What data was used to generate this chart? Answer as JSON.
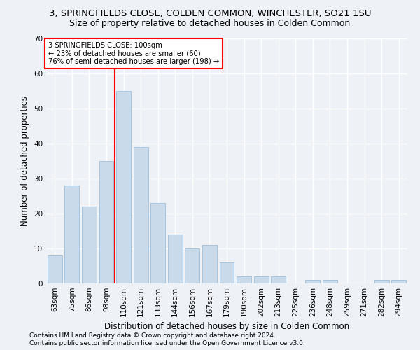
{
  "title": "3, SPRINGFIELDS CLOSE, COLDEN COMMON, WINCHESTER, SO21 1SU",
  "subtitle": "Size of property relative to detached houses in Colden Common",
  "xlabel": "Distribution of detached houses by size in Colden Common",
  "ylabel": "Number of detached properties",
  "categories": [
    "63sqm",
    "75sqm",
    "86sqm",
    "98sqm",
    "110sqm",
    "121sqm",
    "133sqm",
    "144sqm",
    "156sqm",
    "167sqm",
    "179sqm",
    "190sqm",
    "202sqm",
    "213sqm",
    "225sqm",
    "236sqm",
    "248sqm",
    "259sqm",
    "271sqm",
    "282sqm",
    "294sqm"
  ],
  "values": [
    8,
    28,
    22,
    35,
    55,
    39,
    23,
    14,
    10,
    11,
    6,
    2,
    2,
    2,
    0,
    1,
    1,
    0,
    0,
    1,
    1
  ],
  "bar_color": "#c9daea",
  "bar_edgecolor": "#a8c4de",
  "redline_index": 3.5,
  "annotation_lines": [
    "3 SPRINGFIELDS CLOSE: 100sqm",
    "← 23% of detached houses are smaller (60)",
    "76% of semi-detached houses are larger (198) →"
  ],
  "ylim": [
    0,
    70
  ],
  "yticks": [
    0,
    10,
    20,
    30,
    40,
    50,
    60,
    70
  ],
  "footer1": "Contains HM Land Registry data © Crown copyright and database right 2024.",
  "footer2": "Contains public sector information licensed under the Open Government Licence v3.0.",
  "bg_color": "#eef2f7",
  "plot_bg_color": "#eef2f7",
  "grid_color": "#ffffff",
  "title_fontsize": 9.5,
  "subtitle_fontsize": 9,
  "axis_label_fontsize": 8.5,
  "tick_fontsize": 7.5,
  "footer_fontsize": 6.5
}
